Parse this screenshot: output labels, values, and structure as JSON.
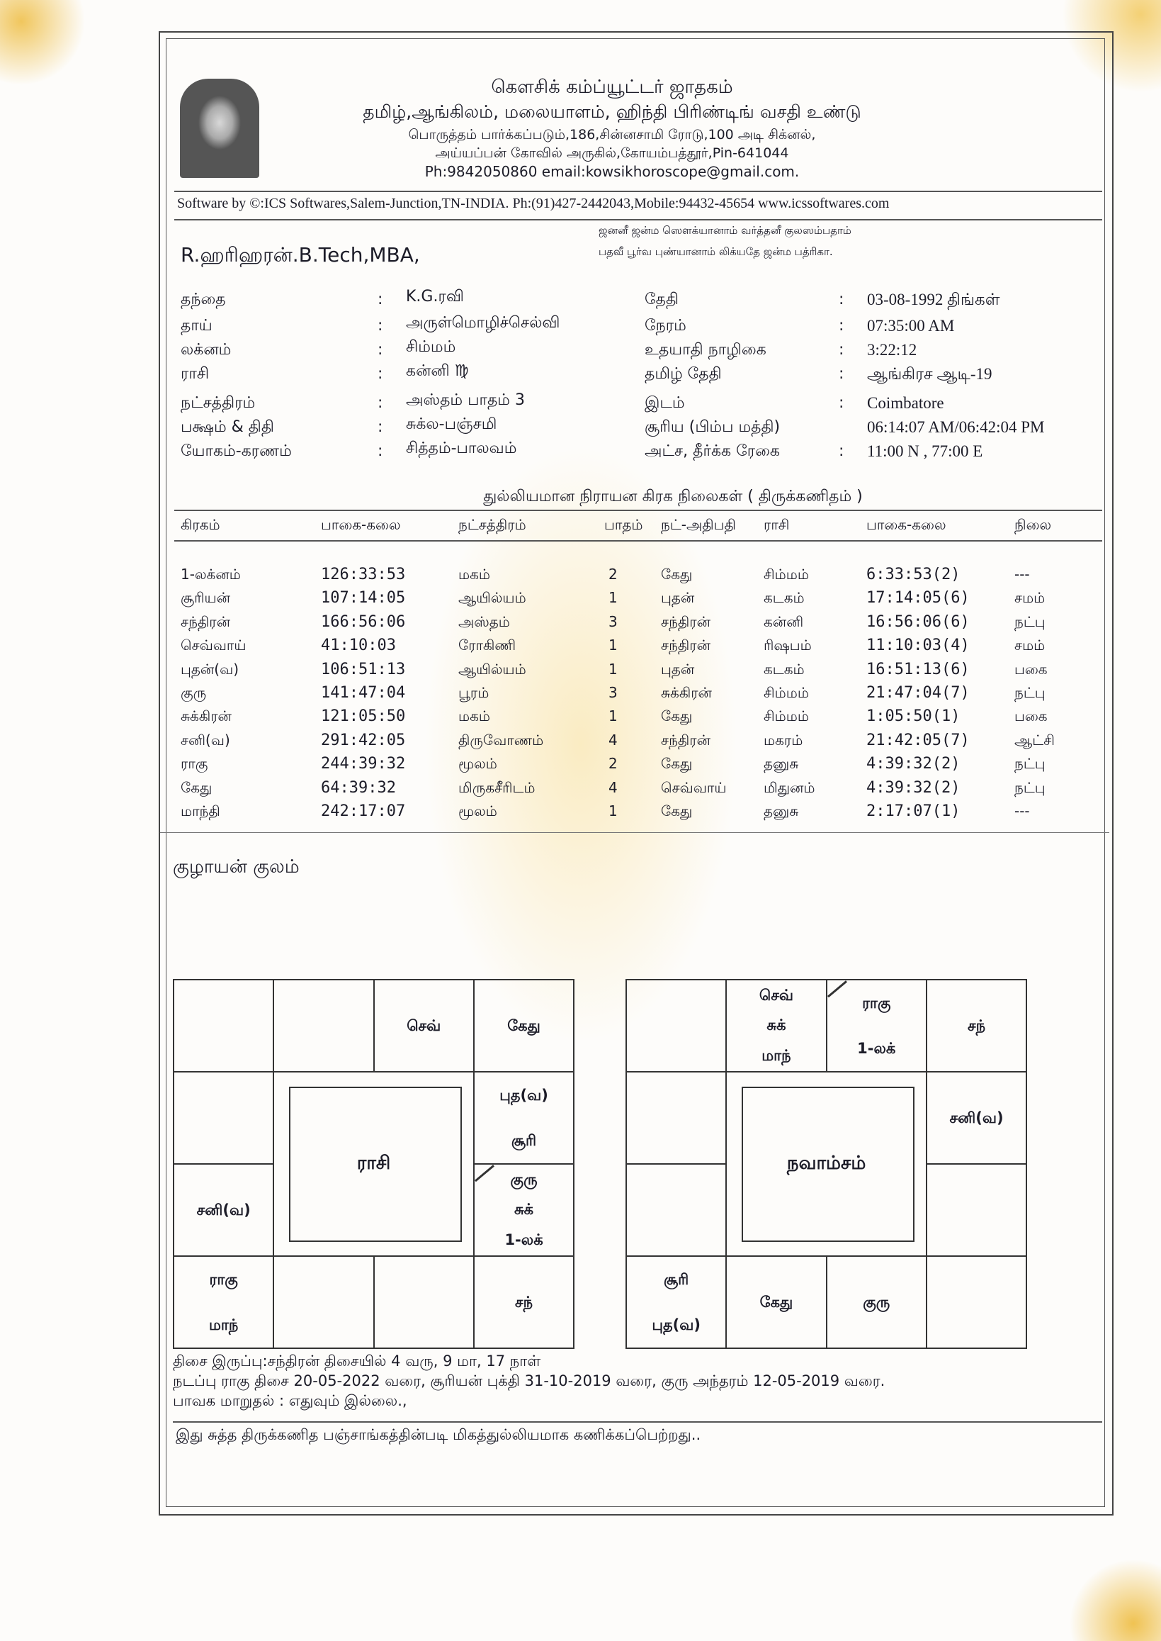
{
  "header": {
    "title": "கௌசிக் கம்ப்யூட்டர் ஜாதகம்",
    "subtitle": "தமிழ்,ஆங்கிலம், மலையாளம், ஹிந்தி பிரிண்டிங் வசதி உண்டு",
    "address1": "பொருத்தம் பார்க்கப்படும்,186,சின்னசாமி ரோடு,100 அடி சிக்னல்,",
    "address2": "அய்யப்பன் கோவில் அருகில்,கோயம்பத்தூர்,Pin-641044",
    "contact": "Ph:9842050860 email:kowsikhoroscope@gmail.com.",
    "software": "Software by ©:ICS Softwares,Salem-Junction,TN-INDIA. Ph:(91)427-2442043,Mobile:94432-45654 www.icssoftwares.com"
  },
  "verse": [
    "ஜனனீ ஜன்ம  ஸௌக்யானாம் வர்த்தனீ குலஸம்பதாம்",
    "பதவீ பூர்வ புண்யானாம் லிக்யதே ஜன்ம பத்ரிகா."
  ],
  "name": "R.ஹரிஹரன்.B.Tech,MBA,",
  "details_left": [
    {
      "label": "தந்தை",
      "value": "K.G.ரவி"
    },
    {
      "label": "தாய்",
      "value": "அருள்மொழிச்செல்வி"
    },
    {
      "label": "லக்னம்",
      "value": "சிம்மம்"
    },
    {
      "label": "ராசி",
      "value": "கன்னி  ♍"
    },
    {
      "label": "நட்சத்திரம்",
      "value": "அஸ்தம் பாதம்  3"
    },
    {
      "label": "பக்ஷம் & திதி",
      "value": "சுக்ல-பஞ்சமி"
    },
    {
      "label": "யோகம்-கரணம்",
      "value": "சித்தம்-பாலவம்"
    }
  ],
  "details_right": [
    {
      "label": "தேதி",
      "value": "03-08-1992 திங்கள்",
      "colon": ":"
    },
    {
      "label": "நேரம்",
      "value": "07:35:00 AM",
      "colon": ":"
    },
    {
      "label": "உதயாதி நாழிகை",
      "value": "3:22:12",
      "colon": ":"
    },
    {
      "label": "தமிழ் தேதி",
      "value": "ஆங்கிரச ஆடி-19",
      "colon": ":"
    },
    {
      "label": "இடம்",
      "value": "Coimbatore",
      "colon": ":"
    },
    {
      "label": "சூரிய (பிம்ப மத்தி)",
      "value": "06:14:07 AM/06:42:04 PM",
      "colon": ""
    },
    {
      "label": "அட்ச, தீர்க்க ரேகை",
      "value": "11:00 N , 77:00 E",
      "colon": ":"
    }
  ],
  "planet_table": {
    "title": "துல்லியமான நிராயன கிரக நிலைகள் ( திருக்கணிதம் )",
    "headers": [
      "கிரகம்",
      "பாகை-கலை",
      "நட்சத்திரம்",
      "பாதம்",
      "நட்-அதிபதி",
      "ராசி",
      "பாகை-கலை",
      "நிலை"
    ],
    "rows": [
      [
        "1-லக்னம்",
        "126:33:53",
        "மகம்",
        "2",
        "கேது",
        "சிம்மம்",
        "6:33:53(2)",
        "---"
      ],
      [
        "சூரியன்",
        "107:14:05",
        "ஆயில்யம்",
        "1",
        "புதன்",
        "கடகம்",
        "17:14:05(6)",
        "சமம்"
      ],
      [
        "சந்திரன்",
        "166:56:06",
        "அஸ்தம்",
        "3",
        "சந்திரன்",
        "கன்னி",
        "16:56:06(6)",
        "நட்பு"
      ],
      [
        "செவ்வாய்",
        "41:10:03",
        "ரோகிணி",
        "1",
        "சந்திரன்",
        "ரிஷபம்",
        "11:10:03(4)",
        "சமம்"
      ],
      [
        "புதன்(வ)",
        "106:51:13",
        "ஆயில்யம்",
        "1",
        "புதன்",
        "கடகம்",
        "16:51:13(6)",
        "பகை"
      ],
      [
        "குரு",
        "141:47:04",
        "பூரம்",
        "3",
        "சுக்கிரன்",
        "சிம்மம்",
        "21:47:04(7)",
        "நட்பு"
      ],
      [
        "சுக்கிரன்",
        "121:05:50",
        "மகம்",
        "1",
        "கேது",
        "சிம்மம்",
        "1:05:50(1)",
        "பகை"
      ],
      [
        "சனி(வ)",
        "291:42:05",
        "திருவோணம்",
        "4",
        "சந்திரன்",
        "மகரம்",
        "21:42:05(7)",
        "ஆட்சி"
      ],
      [
        "ராகு",
        "244:39:32",
        "மூலம்",
        "2",
        "கேது",
        "தனுசு",
        "4:39:32(2)",
        "நட்பு"
      ],
      [
        "கேது",
        "64:39:32",
        "மிருகசீரிடம்",
        "4",
        "செவ்வாய்",
        "மிதுனம்",
        "4:39:32(2)",
        "நட்பு"
      ],
      [
        "மாந்தி",
        "242:17:07",
        "மூலம்",
        "1",
        "கேது",
        "தனுசு",
        "2:17:07(1)",
        "---"
      ]
    ]
  },
  "kulam": "குழாயன் குலம்",
  "charts": [
    {
      "center": "ராசி",
      "lagna_cell": [
        2,
        3
      ],
      "cells": [
        {
          "r": 0,
          "c": 2,
          "lines": [
            "செவ்"
          ]
        },
        {
          "r": 0,
          "c": 3,
          "lines": [
            "கேது"
          ]
        },
        {
          "r": 1,
          "c": 3,
          "lines": [
            "புத(வ)",
            "சூரி"
          ]
        },
        {
          "r": 2,
          "c": 0,
          "lines": [
            "சனி(வ)"
          ]
        },
        {
          "r": 2,
          "c": 3,
          "lines": [
            "குரு",
            "சுக்",
            "1-லக்"
          ]
        },
        {
          "r": 3,
          "c": 0,
          "lines": [
            "ராகு",
            "மாந்"
          ]
        },
        {
          "r": 3,
          "c": 3,
          "lines": [
            "சந்"
          ]
        }
      ]
    },
    {
      "center": "நவாம்சம்",
      "lagna_cell": [
        0,
        2
      ],
      "cells": [
        {
          "r": 0,
          "c": 1,
          "lines": [
            "செவ்",
            "சுக்",
            "மாந்"
          ]
        },
        {
          "r": 0,
          "c": 2,
          "lines": [
            "ராகு",
            "1-லக்"
          ]
        },
        {
          "r": 0,
          "c": 3,
          "lines": [
            "சந்"
          ]
        },
        {
          "r": 1,
          "c": 3,
          "lines": [
            "சனி(வ)"
          ]
        },
        {
          "r": 3,
          "c": 0,
          "lines": [
            "சூரி",
            "புத(வ)"
          ]
        },
        {
          "r": 3,
          "c": 1,
          "lines": [
            "கேது"
          ]
        },
        {
          "r": 3,
          "c": 2,
          "lines": [
            "குரு"
          ]
        }
      ]
    }
  ],
  "footer": {
    "dasa_balance": "திசை இருப்பு:சந்திரன் திசையில் 4 வரு, 9 மா, 17 நாள்",
    "current_dasa": "நடப்பு ராகு திசை 20-05-2022 வரை, சூரியன் புக்தி 31-10-2019 வரை, குரு அந்தரம் 12-05-2019 வரை.",
    "bhava": "பாவக மாறுதல் : எதுவும் இல்லை.,",
    "note": "இது சுத்த திருக்கணித பஞ்சாங்கத்தின்படி மிகத்துல்லியமாக கணிக்கப்பெற்றது.."
  }
}
